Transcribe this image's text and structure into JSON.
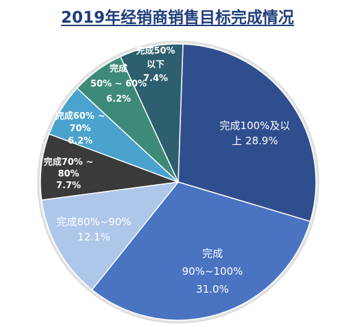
{
  "chart_data": {
    "type": "pie",
    "title": "2019年经销商销售目标完成情况",
    "start_angle_deg": -88,
    "slices": [
      {
        "label_lines": [
          "完成100%及以",
          "上 28.9%"
        ],
        "value": 28.9,
        "color": "#2f4e8e",
        "text_color": "#ffffff"
      },
      {
        "label_lines": [
          "完成",
          "90%~100%",
          "31.0%"
        ],
        "value": 31.0,
        "color": "#4a73c2",
        "text_color": "#ffffff"
      },
      {
        "label_lines": [
          "完成80%~90%",
          "12.1%"
        ],
        "value": 12.1,
        "color": "#aec6ea",
        "text_color": "#ffffff"
      },
      {
        "label_lines": [
          "完成70% ~",
          "80%",
          "7.7%"
        ],
        "value": 7.7,
        "color": "#3a3a3a",
        "text_color": "#ffffff"
      },
      {
        "label_lines": [
          "完成60% ~",
          "70%",
          "6.2%"
        ],
        "value": 6.2,
        "color": "#4aa3cc",
        "text_color": "#ffffff"
      },
      {
        "label_lines": [
          "完成",
          "50% ~ 60%",
          "6.2%"
        ],
        "value": 6.2,
        "color": "#3e8a78",
        "text_color": "#ffffff"
      },
      {
        "label_lines": [
          "完成50%",
          "以下",
          "7.4%"
        ],
        "value": 7.4,
        "color": "#2d5f6e",
        "text_color": "#ffffff"
      }
    ]
  }
}
